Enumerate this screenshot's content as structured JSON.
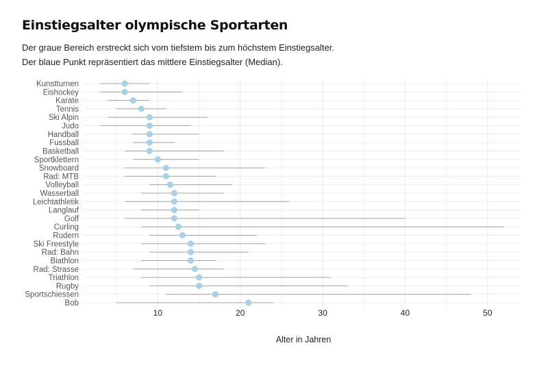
{
  "chart_data": {
    "type": "dot-range",
    "title": "Einstiegsalter olympische Sportarten",
    "subtitle_lines": [
      "Der graue Bereich erstreckt sich vom tiefstem bis zum höchstem Einstiegsalter.",
      "Der blaue Punkt repräsentiert das mittlere Einstiegsalter (Median)."
    ],
    "xlabel": "Alter in Jahren",
    "xlim": [
      1,
      54
    ],
    "xticks": [
      10,
      20,
      30,
      40,
      50
    ],
    "grid": true,
    "colors": {
      "point": "#aad0e6",
      "range": "#a0a0a0",
      "grid": "#ebebeb"
    },
    "categories": [
      "Kunstturnen",
      "Eishockey",
      "Karate",
      "Tennis",
      "Ski Alpin",
      "Judo",
      "Handball",
      "Fussball",
      "Basketball",
      "Sportklettern",
      "Snowboard",
      "Rad: MTB",
      "Volleyball",
      "Wasserball",
      "Leichtathletik",
      "Langlauf",
      "Golf",
      "Curling",
      "Rudern",
      "Ski Freestyle",
      "Rad: Bahn",
      "Biathlon",
      "Rad: Strasse",
      "Triathlon",
      "Rugby",
      "Sportschiessen",
      "Bob"
    ],
    "min": [
      3,
      3,
      4,
      5,
      4,
      3,
      7,
      7,
      6,
      7,
      6,
      6,
      9,
      8,
      6,
      8,
      6,
      8,
      9,
      8,
      9,
      8,
      7,
      8,
      9,
      11,
      5
    ],
    "max": [
      9,
      13,
      9,
      11,
      16,
      14,
      15,
      12,
      18,
      15,
      23,
      17,
      19,
      18,
      26,
      15,
      40,
      52,
      22,
      23,
      21,
      17,
      18,
      31,
      33,
      48,
      24
    ],
    "median": [
      6,
      6,
      7,
      8,
      9,
      9,
      9,
      9,
      9,
      10,
      11,
      11,
      11.5,
      12,
      12,
      12,
      12,
      12.5,
      13,
      14,
      14,
      14,
      14.5,
      15,
      15,
      17,
      21
    ]
  }
}
